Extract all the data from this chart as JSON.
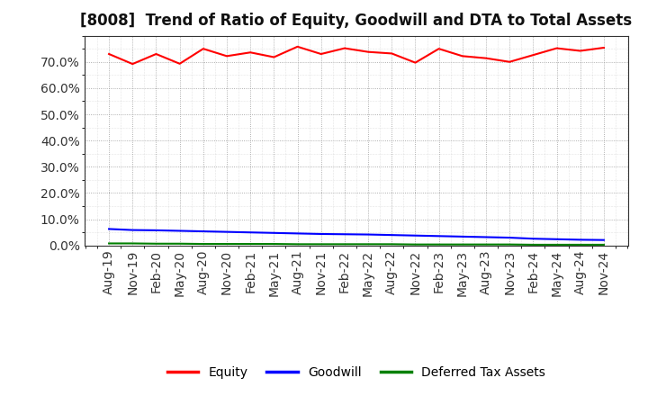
{
  "title": "[8008]  Trend of Ratio of Equity, Goodwill and DTA to Total Assets",
  "x_labels": [
    "Aug-19",
    "Nov-19",
    "Feb-20",
    "May-20",
    "Aug-20",
    "Nov-20",
    "Feb-21",
    "May-21",
    "Aug-21",
    "Nov-21",
    "Feb-22",
    "May-22",
    "Aug-22",
    "Nov-22",
    "Feb-23",
    "May-23",
    "Aug-23",
    "Nov-23",
    "Feb-24",
    "May-24",
    "Aug-24",
    "Nov-24"
  ],
  "equity": [
    0.73,
    0.692,
    0.73,
    0.693,
    0.75,
    0.722,
    0.736,
    0.718,
    0.758,
    0.73,
    0.752,
    0.738,
    0.732,
    0.697,
    0.75,
    0.722,
    0.714,
    0.7,
    0.726,
    0.752,
    0.742,
    0.754
  ],
  "goodwill": [
    0.063,
    0.059,
    0.058,
    0.056,
    0.054,
    0.052,
    0.05,
    0.048,
    0.046,
    0.044,
    0.043,
    0.042,
    0.04,
    0.038,
    0.036,
    0.034,
    0.032,
    0.03,
    0.026,
    0.024,
    0.022,
    0.021
  ],
  "dta": [
    0.008,
    0.008,
    0.007,
    0.007,
    0.006,
    0.006,
    0.006,
    0.006,
    0.005,
    0.005,
    0.005,
    0.005,
    0.005,
    0.004,
    0.004,
    0.004,
    0.004,
    0.004,
    0.003,
    0.003,
    0.003,
    0.003
  ],
  "equity_color": "#ff0000",
  "goodwill_color": "#0000ff",
  "dta_color": "#008000",
  "background_color": "#ffffff",
  "grid_color": "#999999",
  "ylim": [
    0.0,
    0.8
  ],
  "yticks": [
    0.0,
    0.1,
    0.2,
    0.3,
    0.4,
    0.5,
    0.6,
    0.7
  ],
  "legend_labels": [
    "Equity",
    "Goodwill",
    "Deferred Tax Assets"
  ],
  "line_width": 1.5,
  "title_fontsize": 12,
  "tick_fontsize": 10,
  "legend_fontsize": 10
}
